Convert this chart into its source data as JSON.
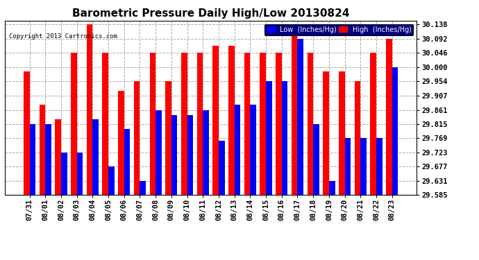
{
  "title": "Barometric Pressure Daily High/Low 20130824",
  "copyright": "Copyright 2013 Cartronics.com",
  "legend_low": "Low  (Inches/Hg)",
  "legend_high": "High  (Inches/Hg)",
  "dates": [
    "07/31",
    "08/01",
    "08/02",
    "08/03",
    "08/04",
    "08/05",
    "08/06",
    "08/07",
    "08/08",
    "08/09",
    "08/10",
    "08/11",
    "08/12",
    "08/13",
    "08/14",
    "08/15",
    "08/16",
    "08/17",
    "08/18",
    "08/19",
    "08/20",
    "08/21",
    "08/22",
    "08/23"
  ],
  "low_values": [
    29.815,
    29.815,
    29.723,
    29.723,
    29.83,
    29.677,
    29.8,
    29.631,
    29.861,
    29.845,
    29.845,
    29.861,
    29.762,
    29.877,
    29.877,
    29.954,
    29.954,
    30.092,
    29.815,
    29.631,
    29.769,
    29.769,
    29.769,
    30.0
  ],
  "high_values": [
    29.985,
    29.877,
    29.83,
    30.046,
    30.138,
    30.046,
    29.923,
    29.954,
    30.046,
    29.954,
    30.046,
    30.046,
    30.069,
    30.069,
    30.046,
    30.046,
    30.046,
    30.138,
    30.046,
    29.985,
    29.985,
    29.954,
    30.046,
    30.092
  ],
  "low_color": "#0000ff",
  "high_color": "#ff0000",
  "ylim_min": 29.585,
  "ylim_max": 30.15,
  "yticks": [
    29.585,
    29.631,
    29.677,
    29.723,
    29.769,
    29.815,
    29.861,
    29.907,
    29.954,
    30.0,
    30.046,
    30.092,
    30.138
  ],
  "bg_color": "#ffffff",
  "grid_color": "#aaaaaa",
  "title_fontsize": 11,
  "tick_fontsize": 7.5,
  "bar_width": 0.38
}
